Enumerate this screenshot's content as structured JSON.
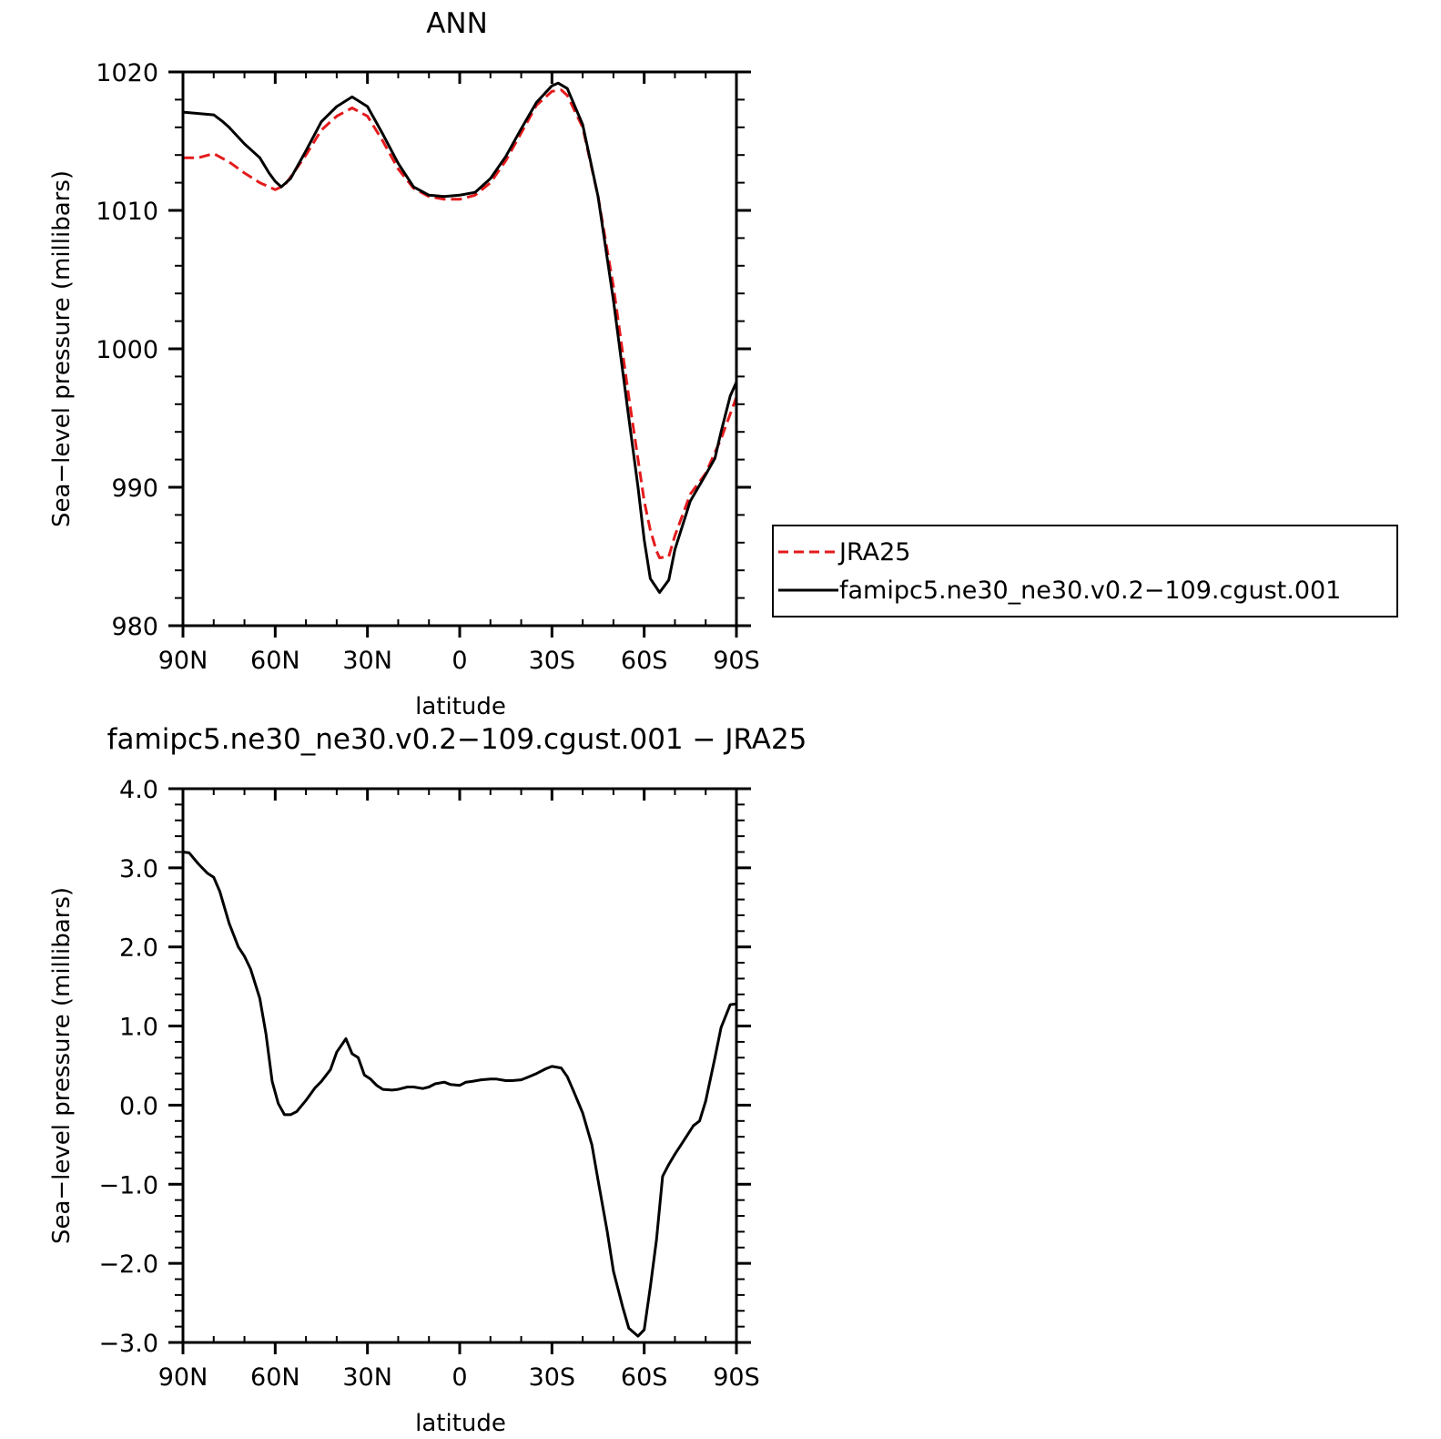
{
  "colors": {
    "black": "#000000",
    "red": "#e41a1c"
  },
  "chart_data": [
    {
      "type": "line",
      "title": "ANN",
      "xlabel": "latitude",
      "ylabel": "Sea−level pressure (millibars)",
      "x_ticks": [
        {
          "value": -90,
          "label": "90N"
        },
        {
          "value": -60,
          "label": "60N"
        },
        {
          "value": -30,
          "label": "30N"
        },
        {
          "value": 0,
          "label": "0"
        },
        {
          "value": 30,
          "label": "30S"
        },
        {
          "value": 60,
          "label": "60S"
        },
        {
          "value": 90,
          "label": "90S"
        }
      ],
      "y_ticks": [
        {
          "value": 980,
          "label": "980"
        },
        {
          "value": 990,
          "label": "990"
        },
        {
          "value": 1000,
          "label": "1000"
        },
        {
          "value": 1010,
          "label": "1010"
        },
        {
          "value": 1020,
          "label": "1020"
        }
      ],
      "xlim": [
        -90,
        90
      ],
      "ylim": [
        980,
        1020
      ],
      "grid": false,
      "legend": {
        "placement": "right",
        "entries": [
          {
            "series": 0,
            "label": "JRA25"
          },
          {
            "series": 1,
            "label": "famipc5.ne30_ne30.v0.2−109.cgust.001"
          }
        ]
      },
      "series": [
        {
          "name": "JRA25",
          "color": "#e41a1c",
          "dash": "dashed",
          "x": [
            -90,
            -85,
            -80,
            -75,
            -70,
            -65,
            -60,
            -57,
            -55,
            -50,
            -45,
            -40,
            -35,
            -30,
            -25,
            -20,
            -15,
            -10,
            -5,
            0,
            5,
            10,
            15,
            20,
            25,
            30,
            33,
            35,
            40,
            45,
            50,
            55,
            60,
            62,
            64,
            65,
            68,
            70,
            75,
            80,
            85,
            90
          ],
          "y": [
            1013.8,
            1013.8,
            1014.1,
            1013.5,
            1012.7,
            1012.0,
            1011.5,
            1011.8,
            1012.4,
            1014.0,
            1015.8,
            1016.8,
            1017.4,
            1016.8,
            1015.0,
            1013.0,
            1011.6,
            1011.0,
            1010.8,
            1010.8,
            1011.1,
            1012.0,
            1013.6,
            1015.6,
            1017.6,
            1018.6,
            1018.7,
            1018.3,
            1016.0,
            1011.0,
            1004.5,
            996.5,
            989.0,
            986.9,
            985.4,
            984.9,
            985.0,
            986.5,
            989.5,
            991.0,
            993.5,
            996.5
          ]
        },
        {
          "name": "famipc5.ne30_ne30.v0.2−109.cgust.001",
          "color": "#000000",
          "dash": "solid",
          "x": [
            -90,
            -85,
            -80,
            -77,
            -75,
            -70,
            -65,
            -62,
            -60,
            -58,
            -55,
            -50,
            -45,
            -40,
            -35,
            -30,
            -25,
            -20,
            -15,
            -10,
            -5,
            0,
            5,
            10,
            15,
            20,
            25,
            30,
            32,
            35,
            40,
            45,
            50,
            55,
            58,
            60,
            62,
            65,
            68,
            70,
            75,
            80,
            83,
            85,
            88,
            90
          ],
          "y": [
            1017.1,
            1017.0,
            1016.9,
            1016.4,
            1016.0,
            1014.8,
            1013.8,
            1012.7,
            1012.1,
            1011.7,
            1012.3,
            1014.3,
            1016.4,
            1017.5,
            1018.2,
            1017.5,
            1015.5,
            1013.4,
            1011.7,
            1011.1,
            1011.0,
            1011.1,
            1011.3,
            1012.3,
            1013.9,
            1015.9,
            1017.8,
            1019.0,
            1019.2,
            1018.8,
            1016.2,
            1011.0,
            1003.5,
            995.0,
            990.0,
            986.2,
            983.4,
            982.4,
            983.3,
            985.5,
            989.0,
            990.9,
            992.1,
            994.0,
            996.6,
            997.6
          ]
        }
      ]
    },
    {
      "type": "line",
      "title": "famipc5.ne30_ne30.v0.2−109.cgust.001  −  JRA25",
      "xlabel": "latitude",
      "ylabel": "Sea−level pressure (millibars)",
      "x_ticks": [
        {
          "value": -90,
          "label": "90N"
        },
        {
          "value": -60,
          "label": "60N"
        },
        {
          "value": -30,
          "label": "30N"
        },
        {
          "value": 0,
          "label": "0"
        },
        {
          "value": 30,
          "label": "30S"
        },
        {
          "value": 60,
          "label": "60S"
        },
        {
          "value": 90,
          "label": "90S"
        }
      ],
      "y_ticks": [
        {
          "value": -3,
          "label": "−3.0"
        },
        {
          "value": -2,
          "label": "−2.0"
        },
        {
          "value": -1,
          "label": "−1.0"
        },
        {
          "value": 0,
          "label": "0.0"
        },
        {
          "value": 1,
          "label": "1.0"
        },
        {
          "value": 2,
          "label": "2.0"
        },
        {
          "value": 3,
          "label": "3.0"
        },
        {
          "value": 4,
          "label": "4.0"
        }
      ],
      "xlim": [
        -90,
        90
      ],
      "ylim": [
        -3,
        4
      ],
      "grid": false,
      "series": [
        {
          "color": "#000000",
          "dash": "solid",
          "x": [
            -90,
            -88,
            -85,
            -82,
            -80,
            -78,
            -75,
            -72,
            -70,
            -68,
            -65,
            -63,
            -61,
            -59,
            -57,
            -55,
            -53,
            -50,
            -47,
            -45,
            -42,
            -40,
            -37,
            -35,
            -33,
            -31,
            -29,
            -27,
            -25,
            -22,
            -20,
            -17,
            -15,
            -12,
            -10,
            -8,
            -5,
            -3,
            0,
            2,
            4,
            7,
            10,
            12,
            15,
            17,
            20,
            22,
            25,
            28,
            30,
            33,
            35,
            37,
            40,
            43,
            45,
            48,
            50,
            53,
            55,
            58,
            60,
            62,
            64,
            66,
            68,
            70,
            72,
            74,
            76,
            78,
            80,
            83,
            85,
            88,
            90
          ],
          "y": [
            3.2,
            3.19,
            3.05,
            2.93,
            2.88,
            2.7,
            2.3,
            2.0,
            1.88,
            1.72,
            1.35,
            0.9,
            0.3,
            0.02,
            -0.12,
            -0.12,
            -0.08,
            0.06,
            0.22,
            0.3,
            0.45,
            0.67,
            0.84,
            0.65,
            0.6,
            0.38,
            0.33,
            0.25,
            0.2,
            0.19,
            0.2,
            0.23,
            0.23,
            0.21,
            0.23,
            0.27,
            0.29,
            0.26,
            0.25,
            0.29,
            0.3,
            0.32,
            0.33,
            0.33,
            0.31,
            0.31,
            0.32,
            0.35,
            0.4,
            0.46,
            0.49,
            0.47,
            0.36,
            0.18,
            -0.1,
            -0.5,
            -0.95,
            -1.6,
            -2.1,
            -2.55,
            -2.82,
            -2.92,
            -2.84,
            -2.3,
            -1.7,
            -0.9,
            -0.75,
            -0.62,
            -0.5,
            -0.38,
            -0.26,
            -0.2,
            0.05,
            0.6,
            0.98,
            1.27,
            1.28
          ]
        }
      ]
    }
  ]
}
